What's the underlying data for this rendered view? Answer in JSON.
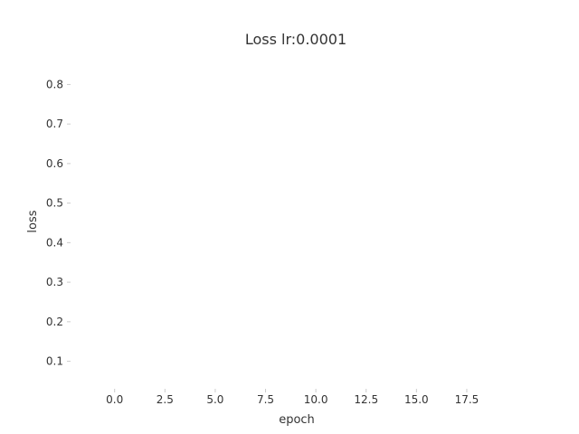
{
  "chart_data": {
    "type": "line",
    "title": "Loss lr:0.0001",
    "xlabel": "epoch",
    "ylabel": "loss",
    "xlim": [
      -2.1,
      20.2
    ],
    "ylim": [
      0.035,
      0.865
    ],
    "xticks": [
      "0.0",
      "2.5",
      "5.0",
      "7.5",
      "10.0",
      "12.5",
      "15.0",
      "17.5"
    ],
    "yticks": [
      "0.1",
      "0.2",
      "0.3",
      "0.4",
      "0.5",
      "0.6",
      "0.7",
      "0.8"
    ],
    "grid": false,
    "series": []
  }
}
